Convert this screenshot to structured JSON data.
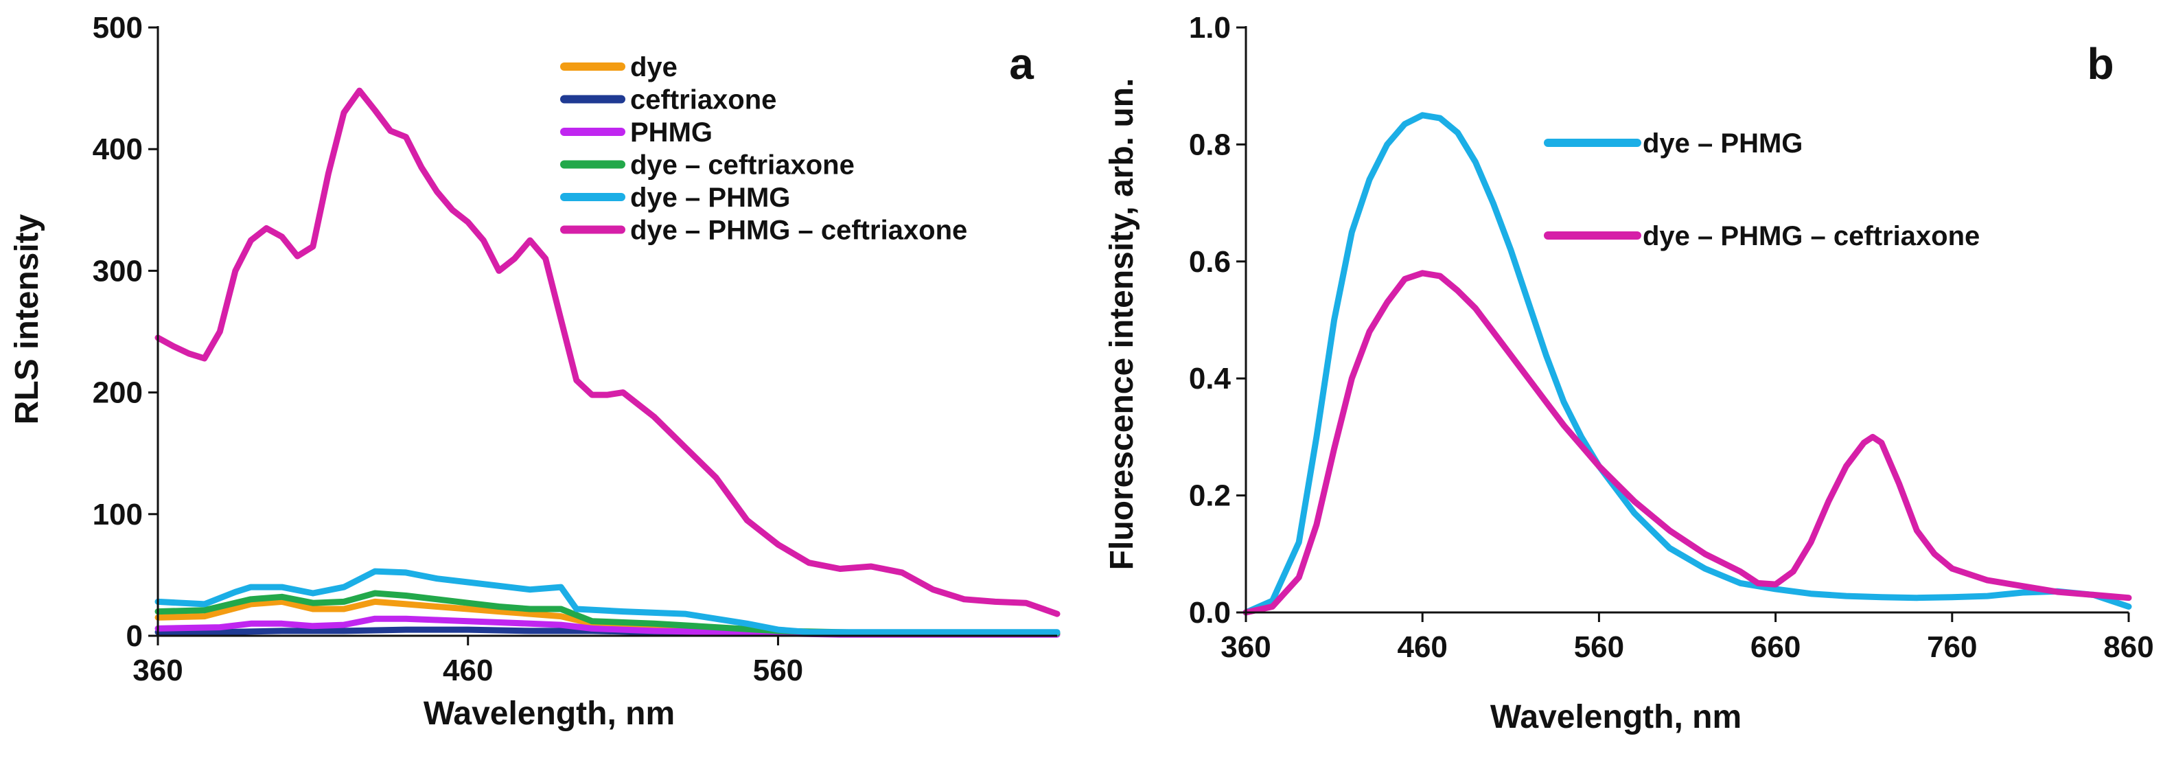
{
  "chart_data": [
    {
      "type": "line",
      "panel_label": "a",
      "title": "",
      "xlabel": "Wavelength, nm",
      "ylabel": "RLS intensity",
      "xlim": [
        360,
        650
      ],
      "ylim": [
        0,
        500
      ],
      "xticks": [
        "360",
        "460",
        "560"
      ],
      "xtick_values": [
        360,
        460,
        560
      ],
      "yticks": [
        "0",
        "100",
        "200",
        "300",
        "400",
        "500"
      ],
      "ytick_values": [
        0,
        100,
        200,
        300,
        400,
        500
      ],
      "grid": false,
      "legend_position": "top-right",
      "series": [
        {
          "name": "dye",
          "color": "#F39C12",
          "x": [
            360,
            375,
            390,
            400,
            410,
            420,
            430,
            440,
            450,
            460,
            470,
            480,
            490,
            500,
            520,
            540,
            560,
            580,
            600,
            620,
            640,
            650
          ],
          "y": [
            15,
            16,
            26,
            28,
            22,
            22,
            28,
            26,
            24,
            22,
            20,
            18,
            16,
            10,
            8,
            5,
            3,
            2,
            2,
            2,
            2,
            2
          ]
        },
        {
          "name": "ceftriaxone",
          "color": "#1F3A93",
          "x": [
            360,
            380,
            400,
            420,
            440,
            460,
            480,
            500,
            520,
            540,
            560,
            580,
            600,
            620,
            640,
            650
          ],
          "y": [
            3,
            3,
            4,
            4,
            5,
            5,
            4,
            4,
            3,
            3,
            2,
            2,
            2,
            2,
            2,
            2
          ]
        },
        {
          "name": "PHMG",
          "color": "#C026F0",
          "x": [
            360,
            380,
            390,
            400,
            410,
            420,
            430,
            440,
            450,
            460,
            470,
            480,
            490,
            500,
            520,
            540,
            560,
            580,
            600,
            620,
            640,
            650
          ],
          "y": [
            6,
            7,
            10,
            10,
            8,
            9,
            14,
            14,
            13,
            12,
            11,
            10,
            9,
            6,
            4,
            3,
            2,
            1,
            1,
            1,
            1,
            1
          ]
        },
        {
          "name": "dye – ceftriaxone",
          "color": "#22A84A",
          "x": [
            360,
            375,
            390,
            400,
            410,
            420,
            430,
            440,
            450,
            460,
            470,
            480,
            490,
            500,
            520,
            540,
            560,
            580,
            600,
            620,
            640,
            650
          ],
          "y": [
            20,
            21,
            30,
            32,
            27,
            28,
            35,
            33,
            30,
            27,
            24,
            22,
            22,
            12,
            10,
            7,
            4,
            3,
            2,
            2,
            2,
            2
          ]
        },
        {
          "name": "dye – PHMG",
          "color": "#1BAEE6",
          "x": [
            360,
            375,
            385,
            390,
            400,
            410,
            420,
            430,
            440,
            450,
            460,
            470,
            480,
            490,
            495,
            510,
            530,
            550,
            560,
            570,
            580,
            600,
            620,
            640,
            650
          ],
          "y": [
            28,
            26,
            36,
            40,
            40,
            35,
            40,
            53,
            52,
            47,
            44,
            41,
            38,
            40,
            22,
            20,
            18,
            10,
            5,
            3,
            3,
            3,
            3,
            3,
            3
          ]
        },
        {
          "name": "dye – PHMG – ceftriaxone",
          "color": "#D61FA8",
          "x": [
            360,
            365,
            370,
            375,
            380,
            385,
            390,
            395,
            400,
            405,
            410,
            415,
            420,
            425,
            430,
            435,
            440,
            445,
            450,
            455,
            460,
            465,
            470,
            475,
            480,
            485,
            490,
            495,
            500,
            505,
            510,
            515,
            520,
            530,
            540,
            550,
            560,
            570,
            580,
            590,
            600,
            610,
            620,
            630,
            640,
            650
          ],
          "y": [
            245,
            238,
            232,
            228,
            250,
            300,
            325,
            335,
            328,
            312,
            320,
            380,
            430,
            448,
            432,
            415,
            410,
            385,
            365,
            350,
            340,
            325,
            300,
            310,
            325,
            310,
            260,
            210,
            198,
            198,
            200,
            190,
            180,
            155,
            130,
            95,
            75,
            60,
            55,
            57,
            52,
            38,
            30,
            28,
            27,
            18
          ]
        }
      ]
    },
    {
      "type": "line",
      "panel_label": "b",
      "title": "",
      "xlabel": "Wavelength, nm",
      "ylabel": "Fluorescence intensity, arb. un.",
      "xlim": [
        360,
        860
      ],
      "ylim": [
        0,
        1.0
      ],
      "xticks": [
        "360",
        "460",
        "560",
        "660",
        "760",
        "860"
      ],
      "xtick_values": [
        360,
        460,
        560,
        660,
        760,
        860
      ],
      "yticks": [
        "0.0",
        "0.2",
        "0.4",
        "0.6",
        "0.8",
        "1.0"
      ],
      "ytick_values": [
        0,
        0.2,
        0.4,
        0.6,
        0.8,
        1.0
      ],
      "grid": false,
      "legend_position": "top-right",
      "series": [
        {
          "name": "dye – PHMG",
          "color": "#1BAEE6",
          "x": [
            360,
            375,
            390,
            400,
            410,
            420,
            430,
            440,
            450,
            460,
            470,
            480,
            490,
            500,
            510,
            520,
            530,
            540,
            550,
            560,
            580,
            600,
            620,
            640,
            660,
            680,
            700,
            720,
            740,
            760,
            780,
            800,
            820,
            840,
            860
          ],
          "y": [
            0.0,
            0.02,
            0.12,
            0.3,
            0.5,
            0.65,
            0.74,
            0.8,
            0.835,
            0.85,
            0.845,
            0.82,
            0.77,
            0.7,
            0.62,
            0.53,
            0.44,
            0.36,
            0.3,
            0.25,
            0.17,
            0.11,
            0.075,
            0.05,
            0.04,
            0.032,
            0.028,
            0.026,
            0.025,
            0.026,
            0.028,
            0.034,
            0.036,
            0.03,
            0.01
          ]
        },
        {
          "name": "dye – PHMG – ceftriaxone",
          "color": "#D61FA8",
          "x": [
            360,
            375,
            390,
            400,
            410,
            420,
            430,
            440,
            450,
            460,
            470,
            480,
            490,
            500,
            510,
            520,
            530,
            540,
            550,
            560,
            580,
            600,
            620,
            640,
            650,
            660,
            670,
            680,
            690,
            700,
            710,
            715,
            720,
            730,
            740,
            750,
            760,
            780,
            800,
            820,
            840,
            860
          ],
          "y": [
            0.0,
            0.01,
            0.06,
            0.15,
            0.28,
            0.4,
            0.48,
            0.53,
            0.57,
            0.58,
            0.575,
            0.55,
            0.52,
            0.48,
            0.44,
            0.4,
            0.36,
            0.32,
            0.285,
            0.25,
            0.19,
            0.14,
            0.1,
            0.07,
            0.05,
            0.048,
            0.07,
            0.12,
            0.19,
            0.25,
            0.29,
            0.3,
            0.29,
            0.22,
            0.14,
            0.1,
            0.075,
            0.055,
            0.045,
            0.035,
            0.03,
            0.025
          ]
        }
      ]
    }
  ]
}
